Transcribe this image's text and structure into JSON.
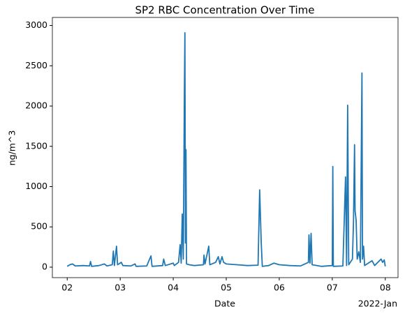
{
  "chart_data": {
    "type": "line",
    "title": "SP2 RBC Concentration Over Time",
    "x_label": "Date",
    "y_label": "ng/m^3",
    "x_offset_label": "2022-Jan",
    "color": "#1f77b4",
    "x": [
      2.0,
      2.05,
      2.1,
      2.15,
      2.3,
      2.42,
      2.44,
      2.46,
      2.6,
      2.7,
      2.75,
      2.85,
      2.87,
      2.89,
      2.93,
      2.95,
      3.02,
      3.05,
      3.2,
      3.28,
      3.3,
      3.5,
      3.58,
      3.6,
      3.8,
      3.82,
      3.85,
      4.0,
      4.02,
      4.1,
      4.13,
      4.15,
      4.17,
      4.19,
      4.21,
      4.22,
      4.23,
      4.24,
      4.25,
      4.3,
      4.4,
      4.57,
      4.58,
      4.6,
      4.67,
      4.69,
      4.8,
      4.85,
      4.88,
      4.92,
      4.95,
      5.0,
      5.2,
      5.4,
      5.6,
      5.63,
      5.66,
      5.68,
      5.8,
      5.9,
      6.0,
      6.2,
      6.4,
      6.55,
      6.56,
      6.58,
      6.6,
      6.62,
      6.8,
      7.0,
      7.01,
      7.02,
      7.2,
      7.25,
      7.27,
      7.29,
      7.31,
      7.38,
      7.4,
      7.42,
      7.43,
      7.45,
      7.47,
      7.5,
      7.53,
      7.56,
      7.57,
      7.59,
      7.61,
      7.75,
      7.8,
      7.92,
      7.95,
      7.98,
      8.0
    ],
    "values": [
      10,
      30,
      40,
      15,
      20,
      15,
      70,
      10,
      20,
      40,
      15,
      30,
      200,
      20,
      260,
      30,
      60,
      20,
      15,
      40,
      10,
      15,
      140,
      10,
      20,
      100,
      20,
      50,
      20,
      60,
      280,
      50,
      660,
      100,
      2150,
      2910,
      300,
      1460,
      40,
      30,
      20,
      30,
      150,
      40,
      260,
      30,
      60,
      130,
      40,
      130,
      60,
      40,
      30,
      20,
      25,
      960,
      300,
      10,
      20,
      50,
      30,
      20,
      15,
      60,
      400,
      50,
      420,
      30,
      10,
      20,
      1250,
      10,
      15,
      1120,
      20,
      2010,
      30,
      100,
      560,
      1520,
      700,
      580,
      100,
      190,
      60,
      2410,
      100,
      260,
      20,
      80,
      20,
      100,
      60,
      90,
      10
    ],
    "xlim": [
      1.72,
      8.24
    ],
    "ylim": [
      -130,
      3100
    ],
    "xticks": [
      {
        "value": 2,
        "label": "02"
      },
      {
        "value": 3,
        "label": "03"
      },
      {
        "value": 4,
        "label": "04"
      },
      {
        "value": 5,
        "label": "05"
      },
      {
        "value": 6,
        "label": "06"
      },
      {
        "value": 7,
        "label": "07"
      },
      {
        "value": 8,
        "label": "08"
      }
    ],
    "yticks": [
      0,
      500,
      1000,
      1500,
      2000,
      2500,
      3000
    ]
  }
}
